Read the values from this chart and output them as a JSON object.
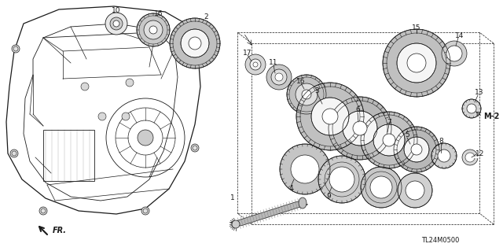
{
  "bg_color": "#ffffff",
  "line_color": "#1a1a1a",
  "model_code": "TL24M0500",
  "case_color": "#f0f0f0",
  "gear_gray": "#c8c8c8",
  "gear_dark": "#a0a0a0",
  "shaft_color": "#b0b0b0"
}
